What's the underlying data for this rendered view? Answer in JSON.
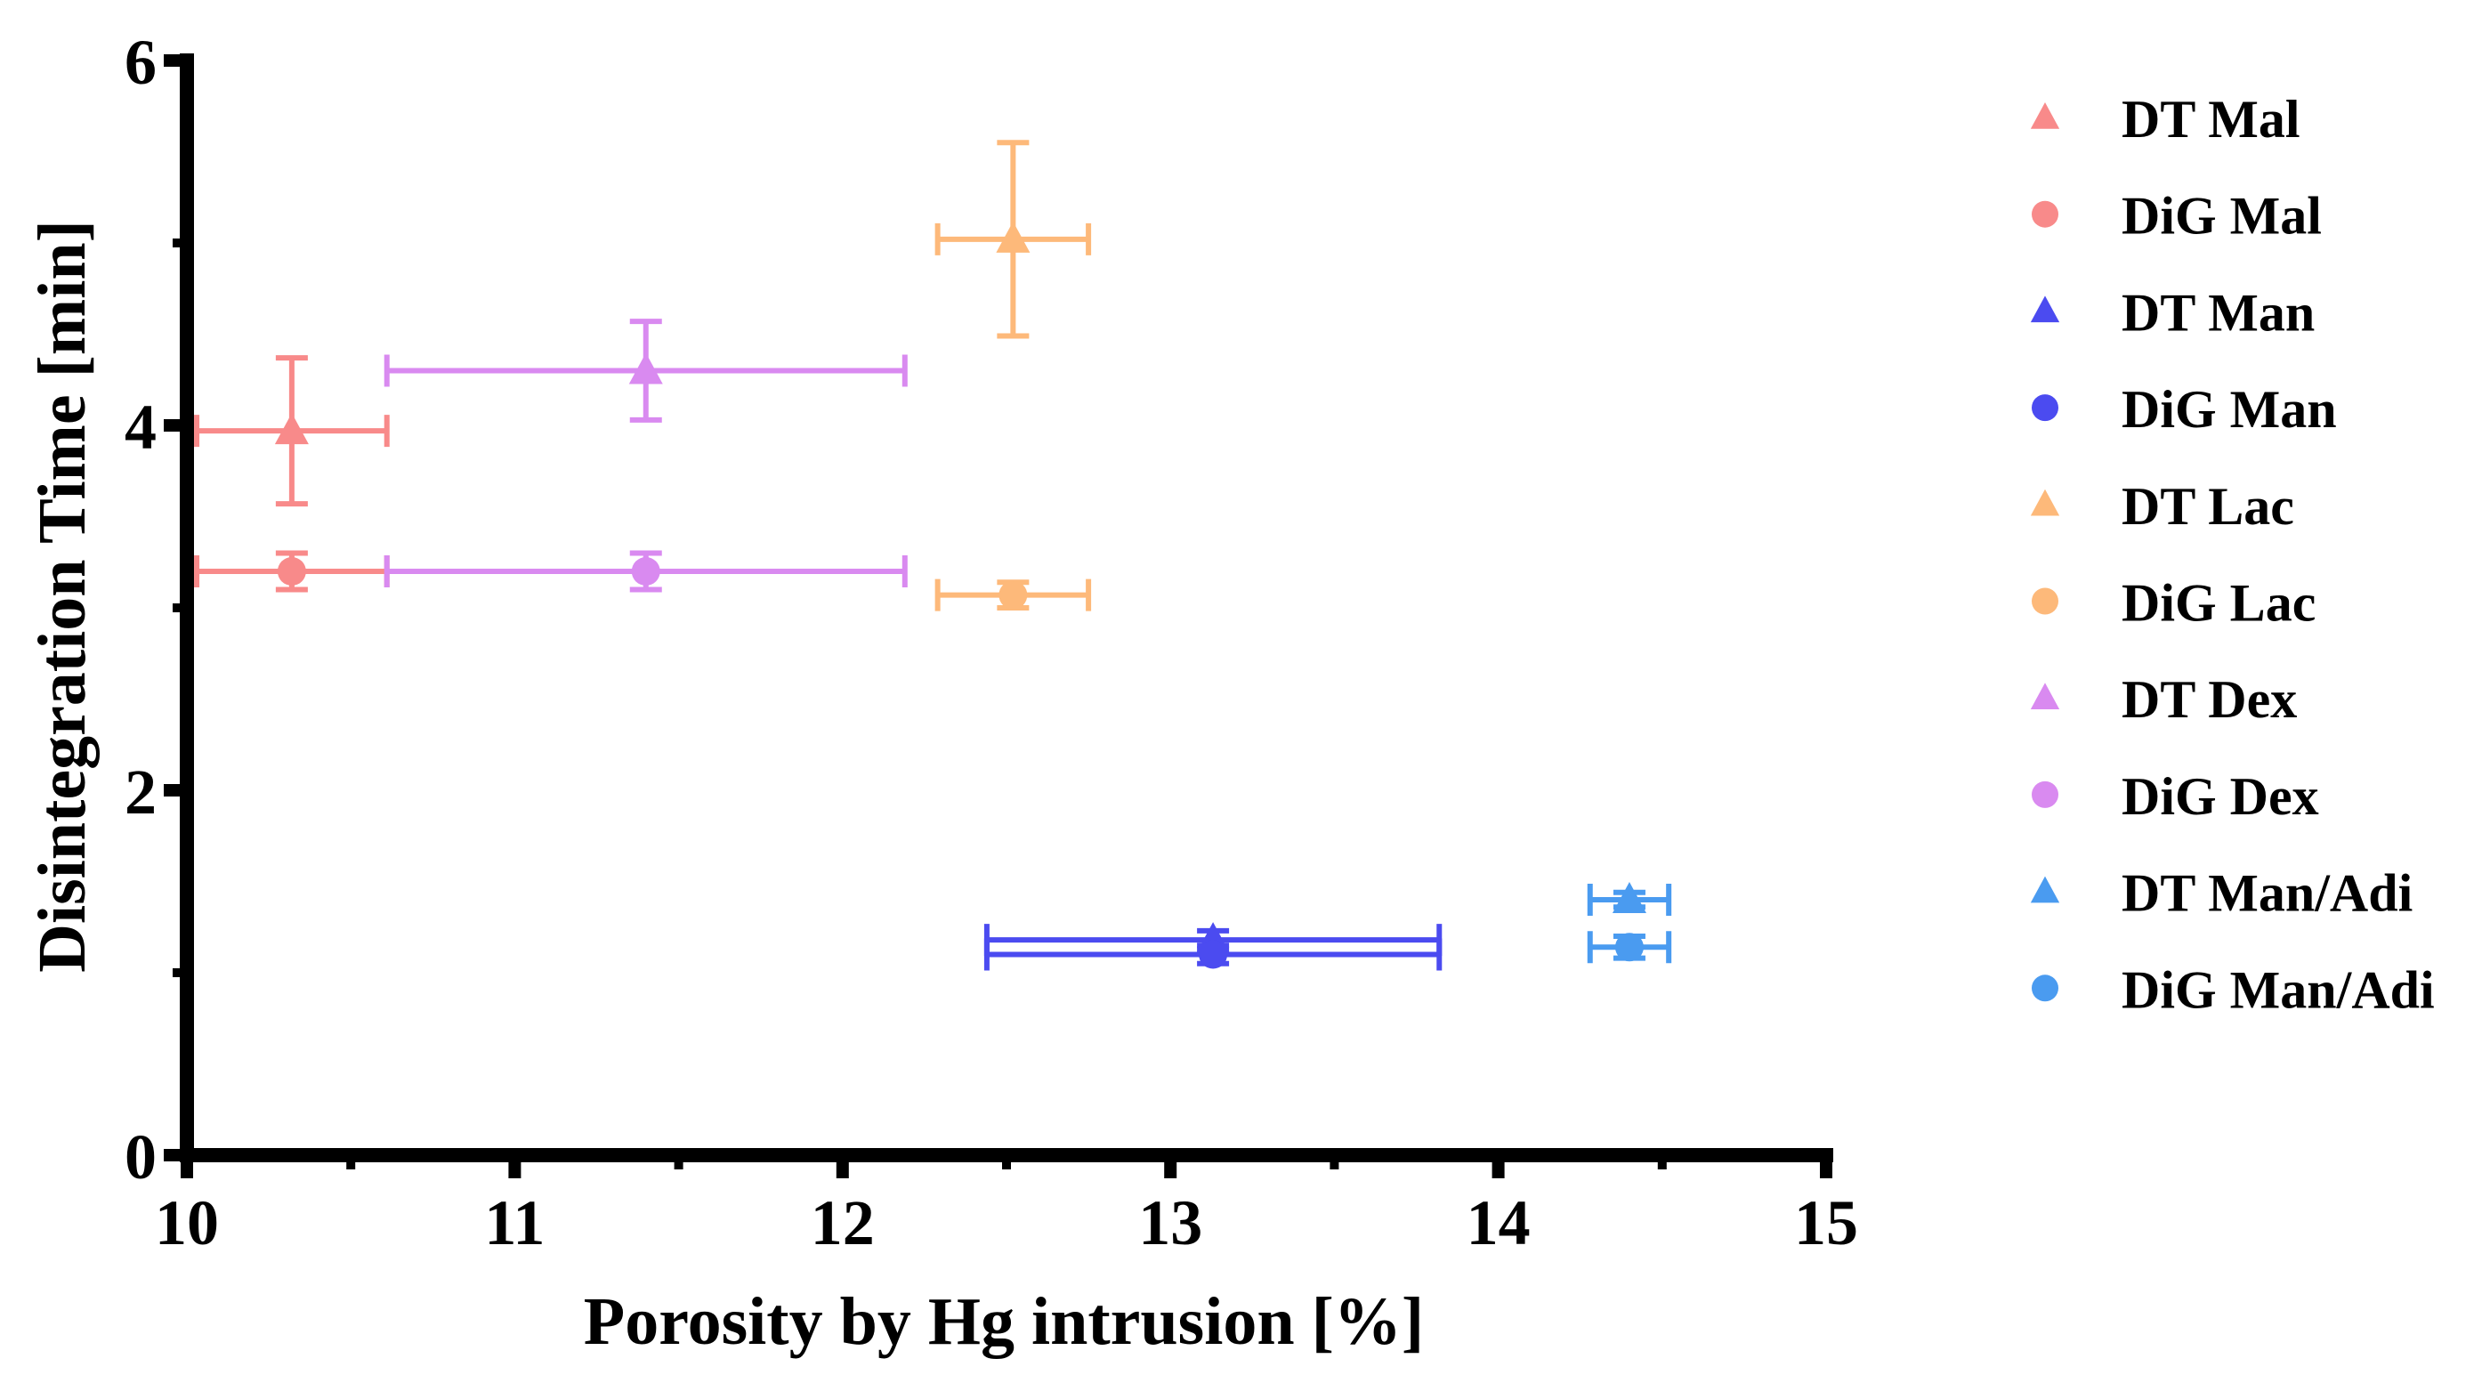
{
  "chart_data": {
    "type": "scatter",
    "title": "",
    "xlabel": "Porosity by Hg intrusion [%]",
    "ylabel": "Disintegration Time [min]",
    "xlim": [
      10,
      15
    ],
    "ylim": [
      0,
      6
    ],
    "xticks": [
      10,
      11,
      12,
      13,
      14,
      15
    ],
    "yticks": [
      0,
      2,
      4,
      6
    ],
    "legend_position": "right",
    "series": [
      {
        "name": "DT Mal",
        "marker": "triangle",
        "color": "#F88A8A",
        "x": 10.32,
        "y": 3.97,
        "xerr": 0.29,
        "yerr": 0.4
      },
      {
        "name": "DiG Mal",
        "marker": "circle",
        "color": "#F88A8A",
        "x": 10.32,
        "y": 3.2,
        "xerr": 0.29,
        "yerr": 0.1
      },
      {
        "name": "DT Man",
        "marker": "triangle",
        "color": "#4B4BF0",
        "x": 13.13,
        "y": 1.18,
        "xerr": 0.69,
        "yerr": 0.05
      },
      {
        "name": "DiG Man",
        "marker": "circle",
        "color": "#4B4BF0",
        "x": 13.13,
        "y": 1.1,
        "xerr": 0.69,
        "yerr": 0.05
      },
      {
        "name": "DT Lac",
        "marker": "triangle",
        "color": "#FDB97A",
        "x": 12.52,
        "y": 5.02,
        "xerr": 0.23,
        "yerr": 0.53
      },
      {
        "name": "DiG Lac",
        "marker": "circle",
        "color": "#FDB97A",
        "x": 12.52,
        "y": 3.07,
        "xerr": 0.23,
        "yerr": 0.07
      },
      {
        "name": "DT Dex",
        "marker": "triangle",
        "color": "#D98AF0",
        "x": 11.4,
        "y": 4.3,
        "xerr": 0.79,
        "yerr": 0.27
      },
      {
        "name": "DiG Dex",
        "marker": "circle",
        "color": "#D98AF0",
        "x": 11.4,
        "y": 3.2,
        "xerr": 0.79,
        "yerr": 0.1
      },
      {
        "name": "DT Man/Adi",
        "marker": "triangle",
        "color": "#4A9BF0",
        "x": 14.4,
        "y": 1.4,
        "xerr": 0.12,
        "yerr": 0.04
      },
      {
        "name": "DiG Man/Adi",
        "marker": "circle",
        "color": "#4A9BF0",
        "x": 14.4,
        "y": 1.14,
        "xerr": 0.12,
        "yerr": 0.06
      }
    ]
  }
}
